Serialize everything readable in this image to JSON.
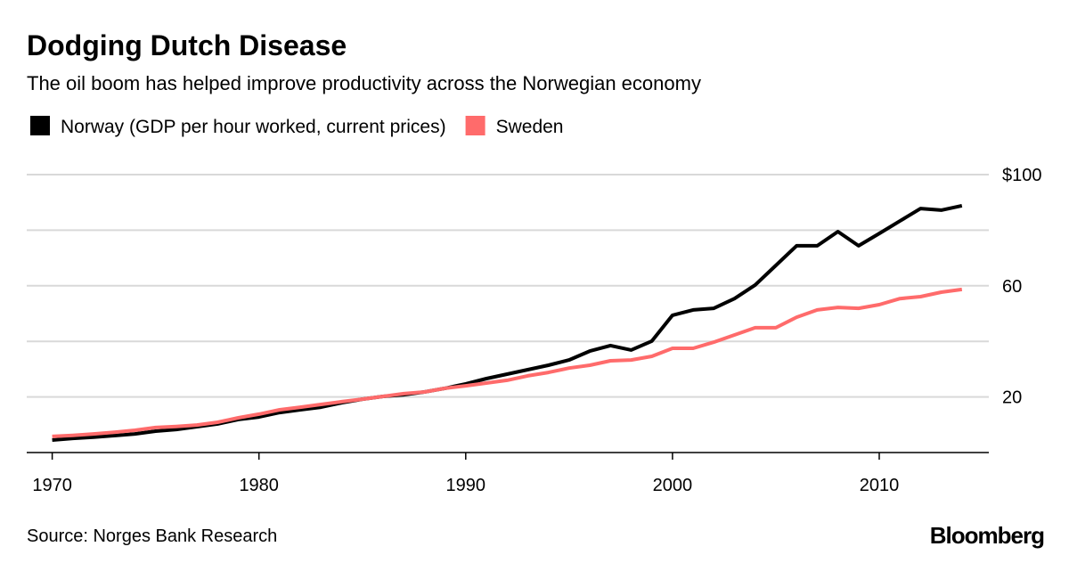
{
  "chart_data": {
    "type": "line",
    "title": "Dodging Dutch Disease",
    "subtitle": "The oil boom has helped improve productivity across the Norwegian economy",
    "source": "Source: Norges Bank Research",
    "brand": "Bloomberg",
    "x": [
      1970,
      1971,
      1972,
      1973,
      1974,
      1975,
      1976,
      1977,
      1978,
      1979,
      1980,
      1981,
      1982,
      1983,
      1984,
      1985,
      1986,
      1987,
      1988,
      1989,
      1990,
      1991,
      1992,
      1993,
      1994,
      1995,
      1996,
      1997,
      1998,
      1999,
      2000,
      2001,
      2002,
      2003,
      2004,
      2005,
      2006,
      2007,
      2008,
      2009,
      2010,
      2011,
      2012,
      2013,
      2014
    ],
    "series": [
      {
        "name": "Norway (GDP per hour worked, current prices)",
        "color": "#000000",
        "values": [
          4.5,
          5.1,
          5.5,
          6.1,
          6.7,
          7.7,
          8.3,
          9.3,
          10.3,
          11.9,
          12.8,
          14.4,
          15.4,
          16.3,
          17.9,
          19.2,
          20.2,
          20.8,
          21.8,
          23.1,
          24.7,
          26.6,
          28.2,
          29.8,
          31.4,
          33.3,
          36.5,
          38.5,
          36.9,
          40.1,
          49.4,
          51.3,
          51.9,
          55.4,
          60.3,
          67.3,
          74.4,
          74.4,
          79.5,
          74.4,
          78.8,
          83.3,
          87.8,
          87.2,
          88.8
        ]
      },
      {
        "name": "Sweden",
        "color": "#ff6b6b",
        "values": [
          5.8,
          6.2,
          6.7,
          7.3,
          8.0,
          9.0,
          9.4,
          9.9,
          10.9,
          12.5,
          13.8,
          15.4,
          16.3,
          17.3,
          18.3,
          19.2,
          20.2,
          21.2,
          21.8,
          23.1,
          24.0,
          25.0,
          26.0,
          27.6,
          28.8,
          30.4,
          31.4,
          33.0,
          33.3,
          34.6,
          37.5,
          37.5,
          39.7,
          42.3,
          44.9,
          44.9,
          48.7,
          51.3,
          52.2,
          51.9,
          53.2,
          55.4,
          56.1,
          57.7,
          58.7
        ]
      }
    ],
    "xlim": [
      1969.5,
      2015.3
    ],
    "xticks": [
      1970,
      1980,
      1990,
      2000,
      2010
    ],
    "ylim": [
      0,
      100
    ],
    "yticks": [
      {
        "value": 20,
        "label": "20"
      },
      {
        "value": 40,
        "label": null
      },
      {
        "value": 60,
        "label": "60"
      },
      {
        "value": 80,
        "label": null
      },
      {
        "value": 100,
        "label": "$100"
      }
    ],
    "grid": true
  }
}
